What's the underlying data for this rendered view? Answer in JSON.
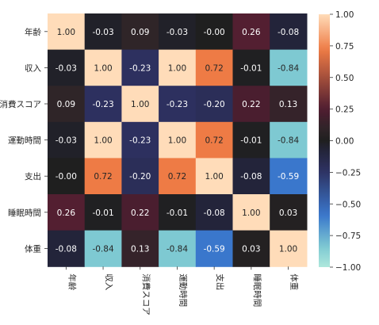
{
  "chart_data": {
    "type": "heatmap",
    "title": "",
    "xlabel": "",
    "ylabel": "",
    "x_labels": [
      "年齢",
      "収入",
      "消費スコア",
      "運動時間",
      "支出",
      "睡眠時間",
      "体重"
    ],
    "y_labels": [
      "年齢",
      "収入",
      "消費スコア",
      "運動時間",
      "支出",
      "睡眠時間",
      "体重"
    ],
    "values": [
      [
        1.0,
        -0.03,
        0.09,
        -0.03,
        -0.0,
        0.26,
        -0.08
      ],
      [
        -0.03,
        1.0,
        -0.23,
        1.0,
        0.72,
        -0.01,
        -0.84
      ],
      [
        0.09,
        -0.23,
        1.0,
        -0.23,
        -0.2,
        0.22,
        0.13
      ],
      [
        -0.03,
        1.0,
        -0.23,
        1.0,
        0.72,
        -0.01,
        -0.84
      ],
      [
        -0.0,
        0.72,
        -0.2,
        0.72,
        1.0,
        -0.08,
        -0.59
      ],
      [
        0.26,
        -0.01,
        0.22,
        -0.01,
        -0.08,
        1.0,
        0.03
      ],
      [
        -0.08,
        -0.84,
        0.13,
        -0.84,
        -0.59,
        0.03,
        1.0
      ]
    ],
    "cell_labels": [
      [
        "1.00",
        "-0.03",
        "0.09",
        "-0.03",
        "-0.00",
        "0.26",
        "-0.08"
      ],
      [
        "-0.03",
        "1.00",
        "-0.23",
        "1.00",
        "0.72",
        "-0.01",
        "-0.84"
      ],
      [
        "0.09",
        "-0.23",
        "1.00",
        "-0.23",
        "-0.20",
        "0.22",
        "0.13"
      ],
      [
        "-0.03",
        "1.00",
        "-0.23",
        "1.00",
        "0.72",
        "-0.01",
        "-0.84"
      ],
      [
        "-0.00",
        "0.72",
        "-0.20",
        "0.72",
        "1.00",
        "-0.08",
        "-0.59"
      ],
      [
        "0.26",
        "-0.01",
        "0.22",
        "-0.01",
        "-0.08",
        "1.00",
        "0.03"
      ],
      [
        "-0.08",
        "-0.84",
        "0.13",
        "-0.84",
        "-0.59",
        "0.03",
        "1.00"
      ]
    ],
    "vmin": -1,
    "vmax": 1,
    "colorscale": "icefire",
    "colorbar_ticks": [
      1,
      0.75,
      0.5,
      0.25,
      0,
      -0.25,
      -0.5,
      -0.75,
      -1
    ],
    "colorbar_tick_labels": [
      "1.00",
      "0.75",
      "0.50",
      "0.25",
      "0.00",
      "−0.25",
      "−0.50",
      "−0.75",
      "−1.00"
    ],
    "colors": {
      "plus_1": "#ffdcb9",
      "plus_0_72": "#ee7b45",
      "plus_0_26": "#531f31",
      "plus_0_2": "#461e2e",
      "plus_0_13": "#35232a",
      "plus_0_09": "#2f2528",
      "zero": "#1f1f1f",
      "minus_0_08": "#23243a",
      "minus_0_23": "#2d305f",
      "minus_0_59": "#3a77cc",
      "minus_0_84": "#7ec9d2",
      "minus_1": "#aee8dc"
    }
  }
}
